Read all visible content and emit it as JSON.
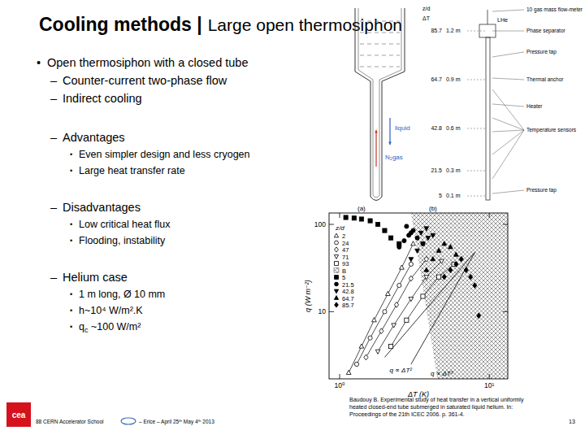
{
  "header": {
    "title_bold": "Cooling methods |",
    "title_rest": "Large open thermosiphon"
  },
  "body": {
    "bullet": "•",
    "dash": "–",
    "heading": "Open thermosiphon with a closed tube",
    "items": [
      {
        "text": "Counter-current two-phase flow"
      },
      {
        "text": "Indirect cooling"
      },
      {
        "text": "Advantages",
        "sub": [
          "Even simpler design and less cryogen",
          "Large heat transfer rate"
        ]
      },
      {
        "text": "Disadvantages",
        "sub": [
          "Low critical heat flux",
          "Flooding, instability"
        ]
      },
      {
        "text": "Helium case",
        "sub": [
          "1 m long, Ø 10 mm",
          "h~10⁴ W/m².K",
          {
            "base": "q",
            "subscript": "c",
            "rest": " ~100 W/m²"
          }
        ]
      }
    ]
  },
  "diagram": {
    "a": {
      "label": "(a)",
      "liquid": "liquid",
      "gas": "N₂gas"
    },
    "b": {
      "label": "(b)",
      "axis_title": "z/d",
      "delta_t": "ΔT",
      "levels": [
        {
          "zd": "85.7",
          "height": "1.2 m"
        },
        {
          "zd": "64.7",
          "height": "0.9 m"
        },
        {
          "zd": "42.8",
          "height": "0.6 m"
        },
        {
          "zd": "21.5",
          "height": "0.3 m"
        },
        {
          "zd": "5",
          "height": "0.1 m"
        }
      ],
      "lhe": "LHe",
      "components": [
        "10 gas mass flow-meter",
        "Phase separator",
        "Pressure tap",
        "Thermal anchor",
        "Heater",
        "Temperature sensors",
        "Pressure tap"
      ]
    }
  },
  "chart_data": {
    "type": "scatter",
    "x_label": "ΔT (K)",
    "y_label": "q (W m⁻²)",
    "log": true,
    "grid": false,
    "xlim": [
      0.85,
      13.3
    ],
    "ylim": [
      1.7,
      135
    ],
    "xticks": [
      {
        "value": 1,
        "label": "10⁰"
      },
      {
        "value": 10,
        "label": "10¹"
      }
    ],
    "yticks": [
      10,
      100
    ],
    "legend": "upper left",
    "legend_title": "z/d",
    "series": [
      {
        "name": "2",
        "color": "#000000",
        "marker": "triangle-open",
        "line_style": "solid",
        "x": [
          1.15,
          1.4,
          1.7,
          2.1,
          2.6,
          3.1
        ],
        "values": [
          2,
          4,
          8,
          16,
          32,
          60
        ]
      },
      {
        "name": "24",
        "color": "#000000",
        "marker": "circle-open",
        "line_style": "solid",
        "x": [
          1.3,
          1.6,
          2.0,
          2.5,
          3.0
        ],
        "values": [
          2.5,
          5,
          10,
          20,
          35
        ]
      },
      {
        "name": "47",
        "color": "#000000",
        "marker": "diamond-open",
        "line_style": "solid",
        "x": [
          1.5,
          1.9,
          2.4,
          3.0,
          3.8
        ],
        "values": [
          3,
          6,
          12,
          24,
          40
        ]
      },
      {
        "name": "71",
        "color": "#000000",
        "marker": "triangle-down-open",
        "line_style": "solid",
        "x": [
          1.8,
          2.3,
          3.0,
          3.8,
          4.8
        ],
        "values": [
          3.5,
          7,
          14,
          25,
          38
        ]
      },
      {
        "name": "93",
        "color": "#000000",
        "marker": "square-open",
        "line_style": "solid",
        "x": [
          2.2,
          2.8,
          3.6,
          4.6,
          5.8
        ],
        "values": [
          4,
          8,
          15,
          25,
          35
        ]
      },
      {
        "name": "5",
        "color": "#000000",
        "marker": "square",
        "line_style": "none",
        "x": [
          1.1,
          1.25,
          1.4,
          1.6,
          1.8,
          2.0,
          2.2,
          2.5
        ],
        "values": [
          120,
          118,
          115,
          110,
          100,
          85,
          70,
          60
        ]
      },
      {
        "name": "21.5",
        "color": "#000000",
        "marker": "circle",
        "line_style": "none",
        "x": [
          2.5,
          2.7,
          2.9,
          3.1,
          2.8,
          3.0,
          3.3,
          3.6
        ],
        "values": [
          55,
          65,
          75,
          85,
          95,
          80,
          70,
          60
        ]
      },
      {
        "name": "42.8",
        "color": "#000000",
        "marker": "triangle-down",
        "line_style": "none",
        "x": [
          3.0,
          3.3,
          3.6,
          3.9,
          3.5,
          3.8,
          4.2
        ],
        "values": [
          40,
          50,
          60,
          70,
          80,
          90,
          75
        ]
      },
      {
        "name": "64.7",
        "color": "#000000",
        "marker": "triangle",
        "line_style": "none",
        "x": [
          3.8,
          4.2,
          4.6,
          5.0,
          5.5,
          6.0
        ],
        "values": [
          30,
          40,
          50,
          60,
          55,
          45
        ]
      },
      {
        "name": "85.7",
        "color": "#000000",
        "marker": "diamond",
        "line_style": "none",
        "x": [
          5.0,
          5.5,
          6.0,
          6.5,
          7.0,
          7.5,
          8.0,
          8.5
        ],
        "values": [
          25,
          30,
          35,
          40,
          30,
          25,
          20,
          9
        ]
      }
    ],
    "region": {
      "name": "B",
      "color": "#555555",
      "x": [
        3.0,
        13.3,
        13.3,
        4.5
      ],
      "y": [
        135,
        135,
        1.7,
        1.7
      ]
    },
    "reference_lines": [
      {
        "label": "q ∝ ΔT²",
        "x": [
          2,
          8
        ],
        "y": [
          3,
          48
        ]
      },
      {
        "label": "q ∝ ΔT³",
        "x": [
          3,
          8
        ],
        "y": [
          2.5,
          47.4
        ]
      }
    ]
  },
  "footer": {
    "logo": "cea",
    "school": "88 CERN Accelerator School",
    "event": "– Erice – April 25ᵗʰ May 4ᵗʰ 2013",
    "reference": [
      "Baudouy B. Experimental study of heat transfer in a vertical uniformly",
      "heated closed-end tube submerged in saturated liquid helium. In:",
      "Proceedings of the 21th ICEC 2006. p. 361-4."
    ],
    "page": "13"
  }
}
